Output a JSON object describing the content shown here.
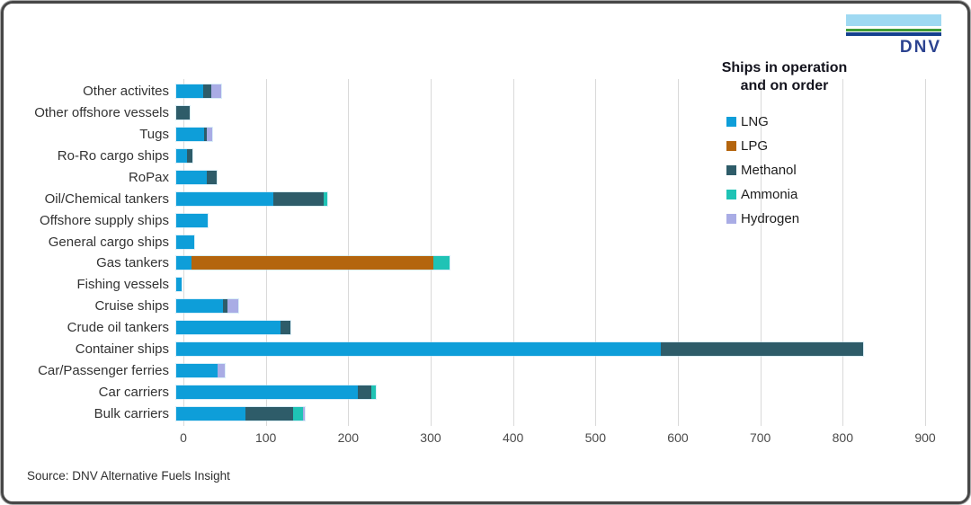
{
  "logo": {
    "text": "DNV",
    "sky_color": "#9fd9f2",
    "green_color": "#3f9c35",
    "navy_color": "#14408e",
    "text_color": "#2c4390"
  },
  "legend": {
    "title_line1": "Ships in operation",
    "title_line2": "and on order"
  },
  "source": "Source: DNV Alternative Fuels Insight",
  "chart_data": {
    "type": "bar",
    "orientation": "horizontal",
    "stacked": true,
    "title": "Ships in operation and on order",
    "xlabel": "",
    "ylabel": "",
    "xlim": [
      0,
      900
    ],
    "x_ticks": [
      0,
      100,
      200,
      300,
      400,
      500,
      600,
      700,
      800,
      900
    ],
    "grid": "vertical",
    "legend_position": "right",
    "categories": [
      "Other activites",
      "Other offshore vessels",
      "Tugs",
      "Ro-Ro cargo ships",
      "RoPax",
      "Oil/Chemical tankers",
      "Offshore supply ships",
      "General cargo ships",
      "Gas tankers",
      "Fishing vessels",
      "Cruise ships",
      "Crude oil tankers",
      "Container ships",
      "Car/Passenger ferries",
      "Car carriers",
      "Bulk carriers"
    ],
    "series": [
      {
        "name": "LNG",
        "color": "#0e9ed9",
        "values": [
          33,
          0,
          34,
          13,
          37,
          118,
          38,
          22,
          18,
          7,
          57,
          126,
          588,
          50,
          220,
          84
        ]
      },
      {
        "name": "LPG",
        "color": "#b4650e",
        "values": [
          0,
          0,
          0,
          0,
          0,
          0,
          0,
          0,
          294,
          0,
          0,
          0,
          0,
          0,
          0,
          0
        ]
      },
      {
        "name": "Methanol",
        "color": "#2e5c69",
        "values": [
          9,
          16,
          3,
          7,
          12,
          61,
          0,
          0,
          0,
          0,
          5,
          12,
          245,
          0,
          17,
          58
        ]
      },
      {
        "name": "Ammonia",
        "color": "#1fc3b5",
        "values": [
          0,
          0,
          0,
          0,
          0,
          4,
          0,
          0,
          20,
          0,
          0,
          0,
          0,
          0,
          5,
          12
        ]
      },
      {
        "name": "Hydrogen",
        "color": "#a9ace5",
        "values": [
          13,
          0,
          7,
          0,
          0,
          0,
          0,
          0,
          0,
          0,
          13,
          0,
          0,
          9,
          0,
          2
        ]
      }
    ]
  }
}
